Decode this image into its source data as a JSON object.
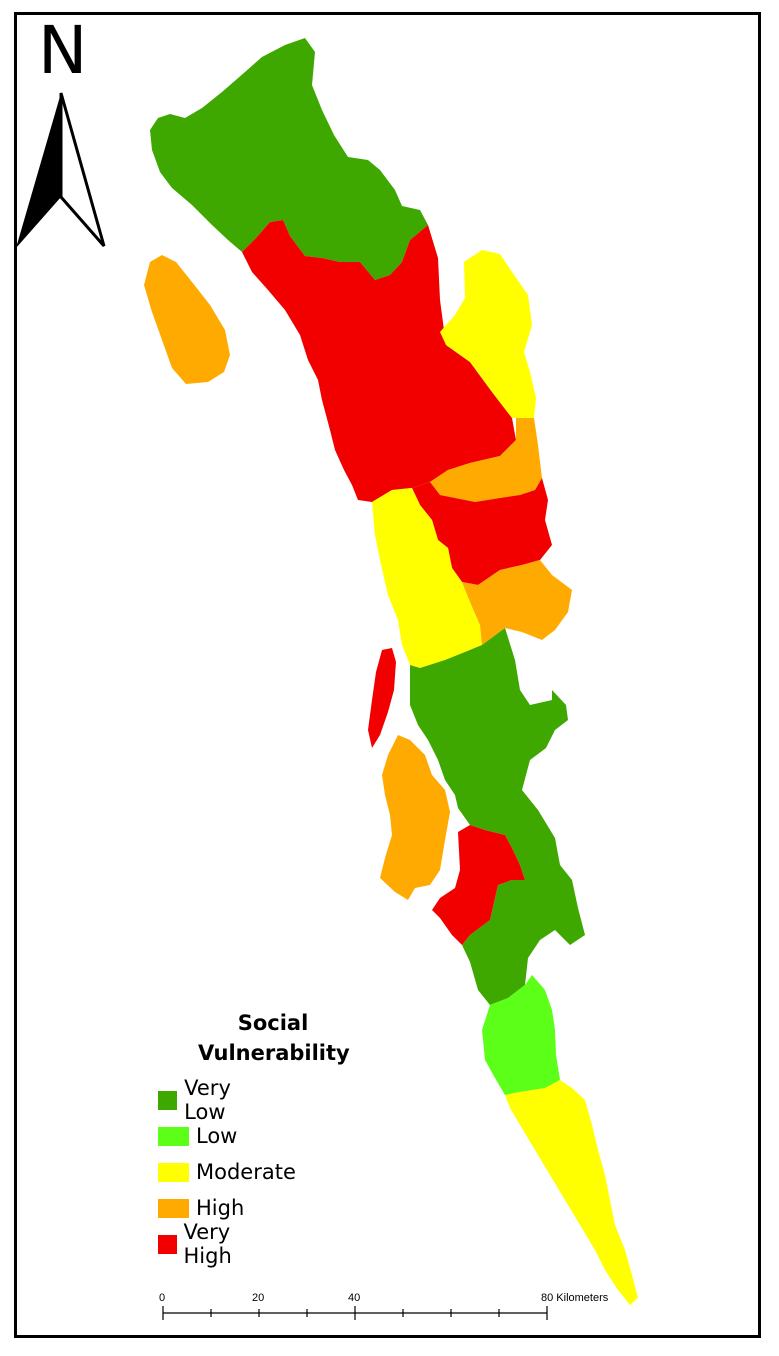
{
  "north_arrow": {
    "letter": "N",
    "icon": "north-arrow-icon"
  },
  "legend": {
    "title_line1": "Social",
    "title_line2": "Vulnerability",
    "items": [
      {
        "label": "Very Low",
        "color": "#3ea800"
      },
      {
        "label": "Low",
        "color": "#5cff17"
      },
      {
        "label": "Moderate",
        "color": "#ffff00"
      },
      {
        "label": "High",
        "color": "#ffaa00"
      },
      {
        "label": "Very High",
        "color": "#f20000"
      }
    ]
  },
  "scale_bar": {
    "labels": [
      "0",
      "20",
      "40",
      "80 Kilometers"
    ]
  },
  "colors": {
    "very_low": "#3ea800",
    "low": "#5cff17",
    "moderate": "#ffff00",
    "high": "#ffaa00",
    "very_high": "#f20000"
  }
}
